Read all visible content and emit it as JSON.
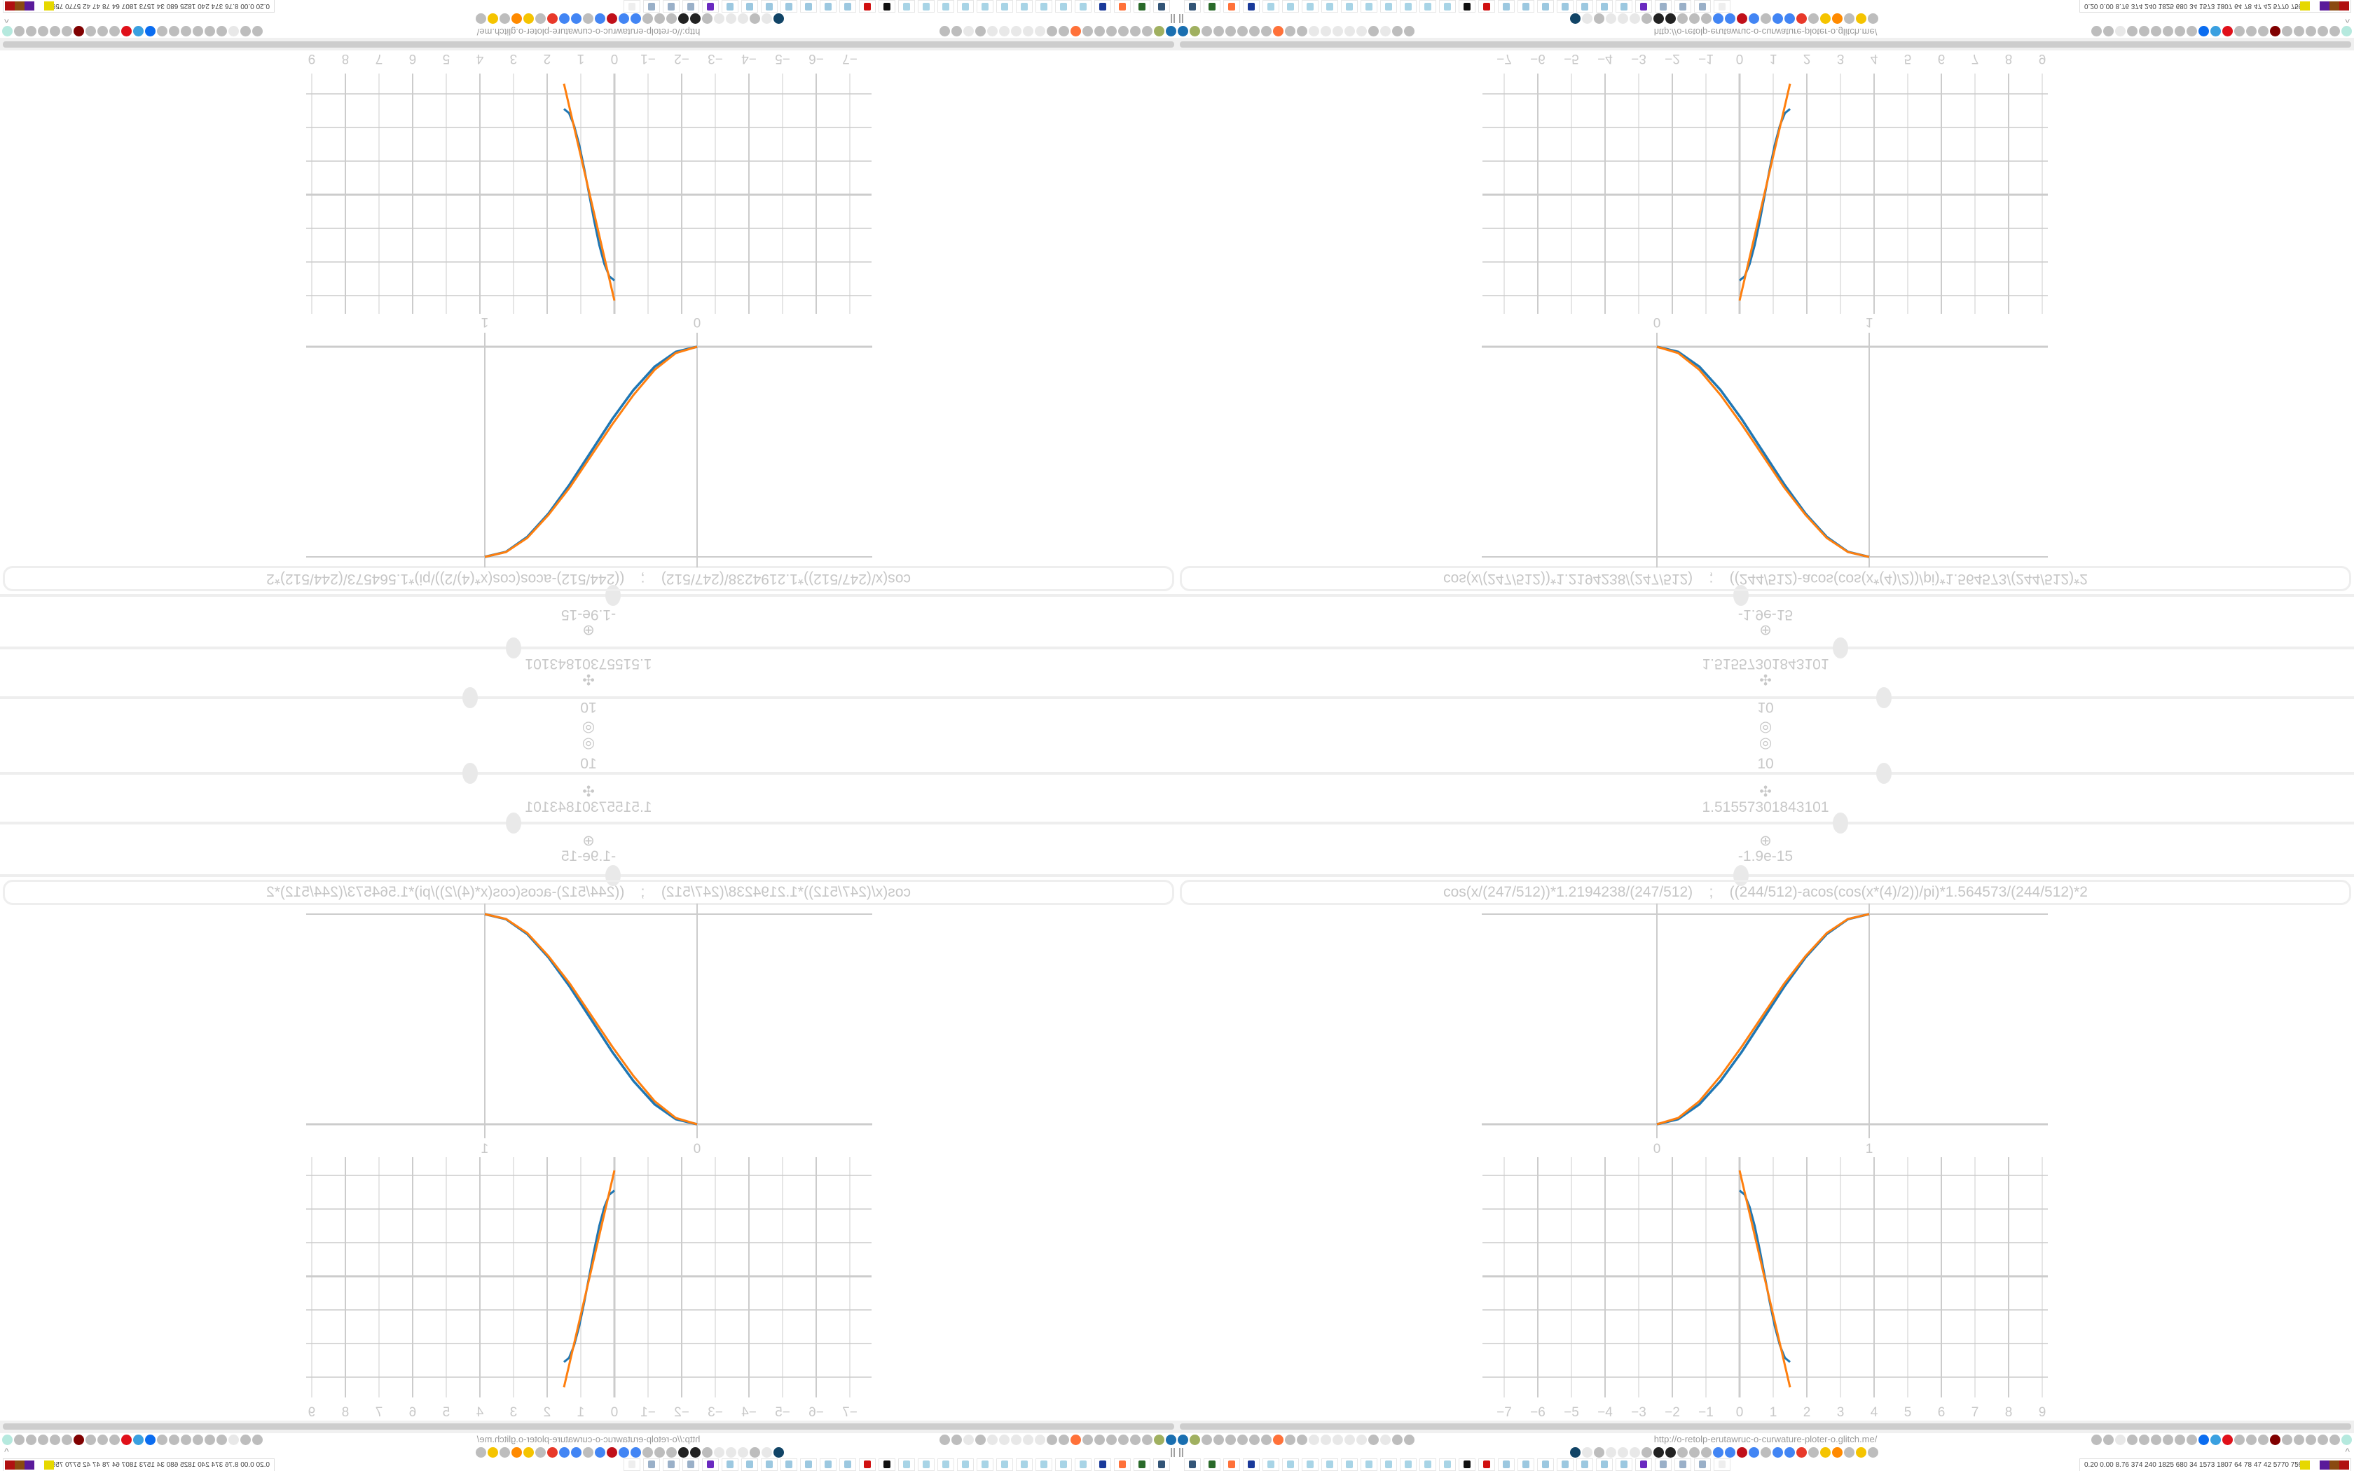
{
  "browser": {
    "url": "http://o-retolp-erutawruc-o-curwature-ploter-o.glitch.me/",
    "pause_label": "||",
    "collapse_label": "^",
    "toolbar_left_icons": [
      "filter-icon",
      "extension-icon",
      "globe-icon",
      "globe-icon",
      "gauge-icon",
      "gauge-icon",
      "globe-icon",
      "wrench-icon",
      "firefox-icon",
      "gear-icon",
      "globe-icon",
      "dot-icon",
      "rect-icon",
      "dot-icon",
      "rect-icon",
      "dot-icon",
      "folder-icon",
      "back-arrow-icon",
      "shield-icon",
      "lock-off-icon"
    ],
    "toolbar_right_icons": [
      "translate-icon",
      "star-icon",
      "forward-arrow-icon",
      "reload-icon",
      "download-icon",
      "pen-icon",
      "translate-a-icon",
      "mouse-icon",
      "gear-icon",
      "plus-icon",
      "upload-icon",
      "record-icon",
      "trash-icon",
      "share-icon",
      "reader-icon",
      "ublock-icon",
      "shield-icon",
      "globe-icon",
      "puzzle-icon",
      "wrench-icon",
      "gear-icon",
      "status-dot-icon"
    ],
    "bookmark_icons": [
      "circle-icon",
      "speaker-icon",
      "cc-icon",
      "speaker-icon",
      "speaker-icon",
      "speaker-icon",
      "globe-icon",
      "wikipedia-icon",
      "wave-icon",
      "globe-icon",
      "archive-icon",
      "translate-icon",
      "google-icon",
      "google-icon",
      "flower-icon",
      "google-icon",
      "drop-icon",
      "google-icon",
      "google-icon",
      "yandex-icon",
      "grid-icon",
      "image-icon",
      "sun-icon",
      "cc-icon",
      "image-icon",
      "hourglass-icon"
    ]
  },
  "taskbar": {
    "apps": [
      "monitor-app",
      "terminal-app",
      "firefox-app",
      "floppy-app",
      "notepad-app",
      "notepad-app",
      "notepad-app",
      "notepad-app",
      "notepad-app",
      "notepad-app",
      "notepad-app",
      "notepad-app",
      "notepad-app",
      "notepad-app",
      "inkscape-app",
      "red-app",
      "calculator-app",
      "calculator-app",
      "calculator-app",
      "calculator-app",
      "calculator-app",
      "calculator-app",
      "calculator-app",
      "ghost-app",
      "scroll-app",
      "scroll-app",
      "scroll-app",
      "blank-app"
    ],
    "stats": "0.20 0.00 8.76 374 240 1825 680 34 1573 1807 64 78 47 42 5770 7598"
  },
  "controls": {
    "icon_top": "◎",
    "icon_top2": "◎",
    "count_value": "10",
    "scale_icon": "✣",
    "scale_value": "1.51557301843101",
    "offset_icon": "⊕",
    "offset_value": "-1.9e-15"
  },
  "formula": {
    "left": "cos(x/(247/512))*1.2194238/(247/512)",
    "separator": ";",
    "right": "((244/512)-acos(cos(x*(4)/2))/pi)*1.564573/(244/512)*2"
  },
  "colors": {
    "series_a": "#1f77b4",
    "series_b": "#ff7f0e",
    "grid": "#cccccc"
  },
  "chart_data": [
    {
      "type": "line",
      "xlim": [
        -0.9,
        1.85
      ],
      "ylim": [
        -0.07,
        1.05
      ],
      "x_ticks": [
        "0",
        "1"
      ],
      "grid": true,
      "series": [
        {
          "x": [
            0,
            0.1,
            0.2,
            0.3,
            0.4,
            0.5,
            0.6,
            0.7,
            0.8,
            0.9,
            1
          ],
          "y": [
            0,
            0.024,
            0.095,
            0.206,
            0.345,
            0.5,
            0.655,
            0.794,
            0.905,
            0.976,
            1
          ],
          "color": "#1f77b4"
        },
        {
          "x": [
            0,
            0.1,
            0.2,
            0.3,
            0.4,
            0.5,
            0.6,
            0.7,
            0.8,
            0.9,
            1
          ],
          "y": [
            0,
            0.03,
            0.11,
            0.23,
            0.37,
            0.52,
            0.67,
            0.8,
            0.91,
            0.977,
            1
          ],
          "color": "#ff7f0e"
        }
      ]
    },
    {
      "type": "line",
      "xlim": [
        -7.6,
        9.2
      ],
      "ylim": [
        -3.6,
        3.5
      ],
      "x_ticks": [
        "−7",
        "−6",
        "−5",
        "−4",
        "−3",
        "−2",
        "−1",
        "0",
        "1",
        "2",
        "3",
        "4",
        "5",
        "6",
        "7",
        "8",
        "9"
      ],
      "y_gridlines": [
        -3,
        -2,
        -1,
        0,
        1,
        2,
        3
      ],
      "grid": true,
      "series": [
        {
          "x": [
            0,
            0.15,
            0.3,
            0.45,
            0.6,
            0.75,
            0.9,
            1.05,
            1.2,
            1.35,
            1.5
          ],
          "y": [
            2.55,
            2.43,
            2.06,
            1.5,
            0.79,
            0,
            -0.79,
            -1.5,
            -2.06,
            -2.43,
            -2.55
          ],
          "color": "#1f77b4"
        },
        {
          "x": [
            0,
            1.5
          ],
          "y": [
            3.15,
            -3.3
          ],
          "color": "#ff7f0e"
        }
      ]
    }
  ]
}
